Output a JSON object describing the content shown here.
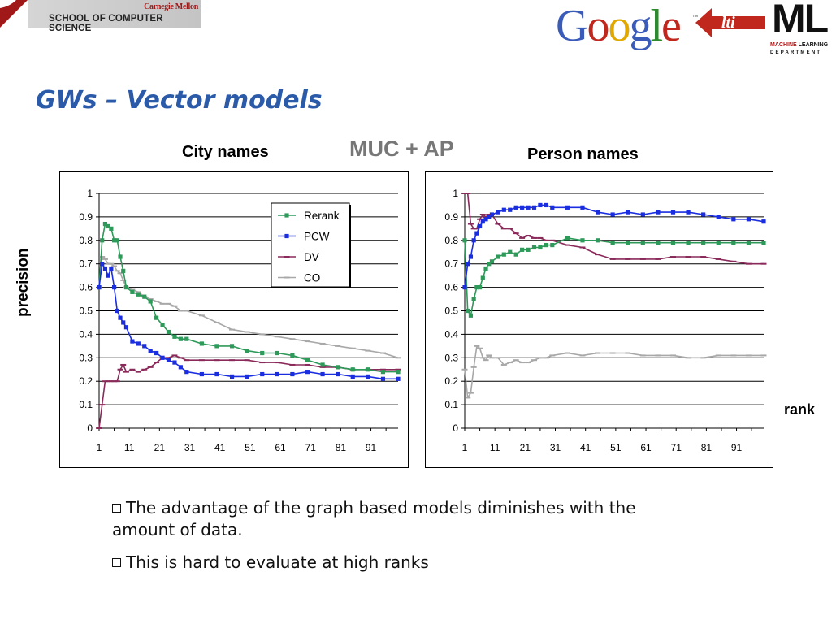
{
  "header": {
    "cmu_small": "Carnegie Mellon",
    "cmu_big": "SCHOOL OF COMPUTER SCIENCE",
    "google_logo": "Google",
    "lti_logo": "lti",
    "ml_logo": "ML",
    "ml_sub1a": "MACHINE",
    "ml_sub1b": "LEARNING",
    "ml_sub2": "DEPARTMENT"
  },
  "slide": {
    "title": "GWs – Vector models",
    "left_caption": "City names",
    "center_caption": "MUC + AP",
    "right_caption": "Person names",
    "y_axis_label": "precision",
    "x_axis_label": "rank"
  },
  "bullets": [
    "The advantage of the graph based models diminishes with the amount of data.",
    "This is hard to evaluate at high ranks"
  ],
  "colors": {
    "title": "#2a5aa8",
    "Rerank": "#2e9a5a",
    "PCW": "#1a2ee0",
    "DV": "#8a2a5a",
    "CO": "#a8a8a8"
  },
  "chart_data": [
    {
      "type": "line",
      "title": "City names",
      "xlabel": "rank",
      "ylabel": "precision",
      "xlim": [
        1,
        100
      ],
      "ylim": [
        0,
        1
      ],
      "x_ticks": [
        "1",
        "11",
        "21",
        "31",
        "41",
        "51",
        "61",
        "71",
        "81",
        "91"
      ],
      "y_ticks": [
        "0",
        "0.1",
        "0.2",
        "0.3",
        "0.4",
        "0.5",
        "0.6",
        "0.7",
        "0.8",
        "0.9",
        "1"
      ],
      "legend": "top-right",
      "grid": true,
      "series": [
        {
          "name": "Rerank",
          "x": [
            1,
            2,
            3,
            4,
            5,
            6,
            7,
            8,
            9,
            10,
            12,
            14,
            16,
            18,
            20,
            22,
            24,
            26,
            28,
            30,
            35,
            40,
            45,
            50,
            55,
            60,
            65,
            70,
            75,
            80,
            85,
            90,
            95,
            100
          ],
          "y": [
            0.6,
            0.8,
            0.87,
            0.86,
            0.85,
            0.8,
            0.8,
            0.73,
            0.67,
            0.6,
            0.58,
            0.57,
            0.56,
            0.54,
            0.47,
            0.44,
            0.41,
            0.39,
            0.38,
            0.38,
            0.36,
            0.35,
            0.35,
            0.33,
            0.32,
            0.32,
            0.31,
            0.29,
            0.27,
            0.26,
            0.25,
            0.25,
            0.24,
            0.24
          ]
        },
        {
          "name": "PCW",
          "x": [
            1,
            2,
            3,
            4,
            5,
            6,
            7,
            8,
            9,
            10,
            12,
            14,
            16,
            18,
            20,
            22,
            24,
            26,
            28,
            30,
            35,
            40,
            45,
            50,
            55,
            60,
            65,
            70,
            75,
            80,
            85,
            90,
            95,
            100
          ],
          "y": [
            0.6,
            0.7,
            0.68,
            0.65,
            0.68,
            0.6,
            0.5,
            0.47,
            0.45,
            0.43,
            0.37,
            0.36,
            0.35,
            0.33,
            0.32,
            0.3,
            0.29,
            0.28,
            0.26,
            0.24,
            0.23,
            0.23,
            0.22,
            0.22,
            0.23,
            0.23,
            0.23,
            0.24,
            0.23,
            0.23,
            0.22,
            0.22,
            0.21,
            0.21
          ]
        },
        {
          "name": "DV",
          "x": [
            1,
            2,
            3,
            4,
            5,
            6,
            7,
            8,
            9,
            10,
            12,
            14,
            16,
            18,
            20,
            22,
            24,
            26,
            28,
            30,
            35,
            40,
            45,
            50,
            55,
            60,
            65,
            70,
            75,
            80,
            85,
            90,
            95,
            100
          ],
          "y": [
            0,
            0.1,
            0.2,
            0.2,
            0.2,
            0.2,
            0.2,
            0.25,
            0.27,
            0.24,
            0.25,
            0.24,
            0.25,
            0.26,
            0.28,
            0.3,
            0.3,
            0.31,
            0.3,
            0.29,
            0.29,
            0.29,
            0.29,
            0.29,
            0.28,
            0.28,
            0.27,
            0.27,
            0.26,
            0.26,
            0.25,
            0.25,
            0.25,
            0.25
          ]
        },
        {
          "name": "CO",
          "x": [
            1,
            2,
            3,
            4,
            5,
            6,
            7,
            8,
            9,
            10,
            12,
            14,
            16,
            18,
            20,
            22,
            24,
            26,
            28,
            30,
            35,
            40,
            45,
            50,
            55,
            60,
            65,
            70,
            75,
            80,
            85,
            90,
            95,
            100
          ],
          "y": [
            0.6,
            0.73,
            0.72,
            0.7,
            0.7,
            0.69,
            0.67,
            0.66,
            0.63,
            0.6,
            0.59,
            0.58,
            0.56,
            0.55,
            0.54,
            0.53,
            0.53,
            0.52,
            0.5,
            0.5,
            0.48,
            0.45,
            0.42,
            0.41,
            0.4,
            0.39,
            0.38,
            0.37,
            0.36,
            0.35,
            0.34,
            0.33,
            0.32,
            0.3
          ]
        }
      ]
    },
    {
      "type": "line",
      "title": "Person names",
      "xlabel": "rank",
      "ylabel": "precision",
      "xlim": [
        1,
        100
      ],
      "ylim": [
        0,
        1
      ],
      "x_ticks": [
        "1",
        "11",
        "21",
        "31",
        "41",
        "51",
        "61",
        "71",
        "81",
        "91"
      ],
      "y_ticks": [
        "0",
        "0.1",
        "0.2",
        "0.3",
        "0.4",
        "0.5",
        "0.6",
        "0.7",
        "0.8",
        "0.9",
        "1"
      ],
      "grid": true,
      "series": [
        {
          "name": "Rerank",
          "x": [
            1,
            2,
            3,
            4,
            5,
            6,
            7,
            8,
            9,
            10,
            12,
            14,
            16,
            18,
            20,
            22,
            24,
            26,
            28,
            30,
            35,
            40,
            45,
            50,
            55,
            60,
            65,
            70,
            75,
            80,
            85,
            90,
            95,
            100
          ],
          "y": [
            0.8,
            0.5,
            0.48,
            0.55,
            0.6,
            0.6,
            0.64,
            0.68,
            0.7,
            0.71,
            0.73,
            0.74,
            0.75,
            0.74,
            0.76,
            0.76,
            0.77,
            0.77,
            0.78,
            0.78,
            0.81,
            0.8,
            0.8,
            0.79,
            0.79,
            0.79,
            0.79,
            0.79,
            0.79,
            0.79,
            0.79,
            0.79,
            0.79,
            0.79
          ]
        },
        {
          "name": "PCW",
          "x": [
            1,
            2,
            3,
            4,
            5,
            6,
            7,
            8,
            9,
            10,
            12,
            14,
            16,
            18,
            20,
            22,
            24,
            26,
            28,
            30,
            35,
            40,
            45,
            50,
            55,
            60,
            65,
            70,
            75,
            80,
            85,
            90,
            95,
            100
          ],
          "y": [
            0.6,
            0.7,
            0.73,
            0.8,
            0.83,
            0.86,
            0.88,
            0.89,
            0.9,
            0.91,
            0.92,
            0.93,
            0.93,
            0.94,
            0.94,
            0.94,
            0.94,
            0.95,
            0.95,
            0.94,
            0.94,
            0.94,
            0.92,
            0.91,
            0.92,
            0.91,
            0.92,
            0.92,
            0.92,
            0.91,
            0.9,
            0.89,
            0.89,
            0.88
          ]
        },
        {
          "name": "DV",
          "x": [
            1,
            2,
            3,
            4,
            5,
            6,
            7,
            8,
            9,
            10,
            12,
            14,
            16,
            18,
            20,
            22,
            24,
            26,
            28,
            30,
            35,
            40,
            45,
            50,
            55,
            60,
            65,
            70,
            75,
            80,
            85,
            90,
            95,
            100
          ],
          "y": [
            1,
            1,
            0.87,
            0.85,
            0.85,
            0.89,
            0.91,
            0.9,
            0.91,
            0.91,
            0.87,
            0.85,
            0.85,
            0.83,
            0.81,
            0.82,
            0.81,
            0.81,
            0.8,
            0.8,
            0.78,
            0.77,
            0.74,
            0.72,
            0.72,
            0.72,
            0.72,
            0.73,
            0.73,
            0.73,
            0.72,
            0.71,
            0.7,
            0.7
          ]
        },
        {
          "name": "CO",
          "x": [
            1,
            2,
            3,
            4,
            5,
            6,
            7,
            8,
            9,
            10,
            12,
            14,
            16,
            18,
            20,
            22,
            24,
            26,
            28,
            30,
            35,
            40,
            45,
            50,
            55,
            60,
            65,
            70,
            75,
            80,
            85,
            90,
            95,
            100
          ],
          "y": [
            0.25,
            0.13,
            0.15,
            0.26,
            0.35,
            0.34,
            0.3,
            0.29,
            0.31,
            0.3,
            0.3,
            0.27,
            0.28,
            0.29,
            0.28,
            0.28,
            0.29,
            0.3,
            0.3,
            0.31,
            0.32,
            0.31,
            0.32,
            0.32,
            0.32,
            0.31,
            0.31,
            0.31,
            0.3,
            0.3,
            0.31,
            0.31,
            0.31,
            0.31
          ]
        }
      ]
    }
  ]
}
